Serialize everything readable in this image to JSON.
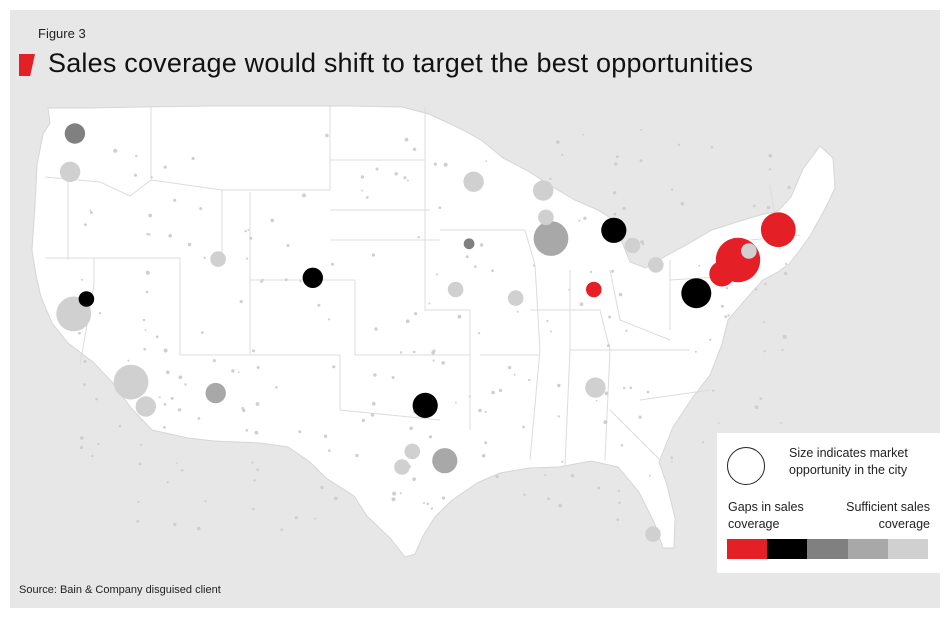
{
  "figure_label": "Figure 3",
  "title": "Sales coverage would shift to target the best opportunities",
  "source": "Source: Bain & Company disguised client",
  "legend": {
    "size_text": "Size indicates market opportunity in the city",
    "left_label": "Gaps in sales coverage",
    "right_label": "Sufficient sales coverage",
    "scale_colors": [
      "#e41f26",
      "#000000",
      "#808080",
      "#a8a8a8",
      "#d0d0d0"
    ]
  },
  "colors": {
    "background": "#e7e7e8",
    "land": "#ffffff",
    "state_borders": "#dcdcdc",
    "accent": "#e41f26"
  },
  "cities": [
    {
      "lon": -122.33,
      "lat": 47.61,
      "size": 3,
      "coverage": 2
    },
    {
      "lon": -122.68,
      "lat": 45.52,
      "size": 3,
      "coverage": 4
    },
    {
      "lon": -122.42,
      "lat": 37.77,
      "size": 6,
      "coverage": 4
    },
    {
      "lon": -118.24,
      "lat": 34.05,
      "size": 6,
      "coverage": 4
    },
    {
      "lon": -117.16,
      "lat": 32.72,
      "size": 3,
      "coverage": 4
    },
    {
      "lon": -121.49,
      "lat": 38.58,
      "size": 2,
      "coverage": 5
    },
    {
      "lon": -112.07,
      "lat": 33.45,
      "size": 3,
      "coverage": 3
    },
    {
      "lon": -111.89,
      "lat": 40.76,
      "size": 2,
      "coverage": 4
    },
    {
      "lon": -104.99,
      "lat": 39.74,
      "size": 3,
      "coverage": 1
    },
    {
      "lon": -96.8,
      "lat": 32.78,
      "size": 4,
      "coverage": 1
    },
    {
      "lon": -95.37,
      "lat": 29.76,
      "size": 4,
      "coverage": 3
    },
    {
      "lon": -98.49,
      "lat": 29.42,
      "size": 2,
      "coverage": 4
    },
    {
      "lon": -97.74,
      "lat": 30.27,
      "size": 2,
      "coverage": 4
    },
    {
      "lon": -93.27,
      "lat": 44.98,
      "size": 3,
      "coverage": 4
    },
    {
      "lon": -87.63,
      "lat": 41.88,
      "size": 6,
      "coverage": 3
    },
    {
      "lon": -83.05,
      "lat": 42.33,
      "size": 4,
      "coverage": 1
    },
    {
      "lon": -84.51,
      "lat": 39.1,
      "size": 2,
      "coverage": 0
    },
    {
      "lon": -79.99,
      "lat": 40.44,
      "size": 2,
      "coverage": 4
    },
    {
      "lon": -77.04,
      "lat": 38.9,
      "size": 5,
      "coverage": 1
    },
    {
      "lon": -75.17,
      "lat": 39.95,
      "size": 4,
      "coverage": 0
    },
    {
      "lon": -74.0,
      "lat": 40.71,
      "size": 8,
      "coverage": 0
    },
    {
      "lon": -71.06,
      "lat": 42.36,
      "size": 6,
      "coverage": 0
    },
    {
      "lon": -73.2,
      "lat": 41.2,
      "size": 2,
      "coverage": 4
    },
    {
      "lon": -84.39,
      "lat": 33.75,
      "size": 3,
      "coverage": 4
    },
    {
      "lon": -80.19,
      "lat": 25.76,
      "size": 2,
      "coverage": 4
    },
    {
      "lon": -90.2,
      "lat": 38.63,
      "size": 2,
      "coverage": 4
    },
    {
      "lon": -94.58,
      "lat": 39.1,
      "size": 2,
      "coverage": 4
    },
    {
      "lon": -93.6,
      "lat": 41.59,
      "size": 1,
      "coverage": 2
    },
    {
      "lon": -81.69,
      "lat": 41.5,
      "size": 2,
      "coverage": 4
    },
    {
      "lon": -88.0,
      "lat": 43.04,
      "size": 2,
      "coverage": 4
    },
    {
      "lon": -88.2,
      "lat": 44.5,
      "size": 3,
      "coverage": 4
    }
  ]
}
